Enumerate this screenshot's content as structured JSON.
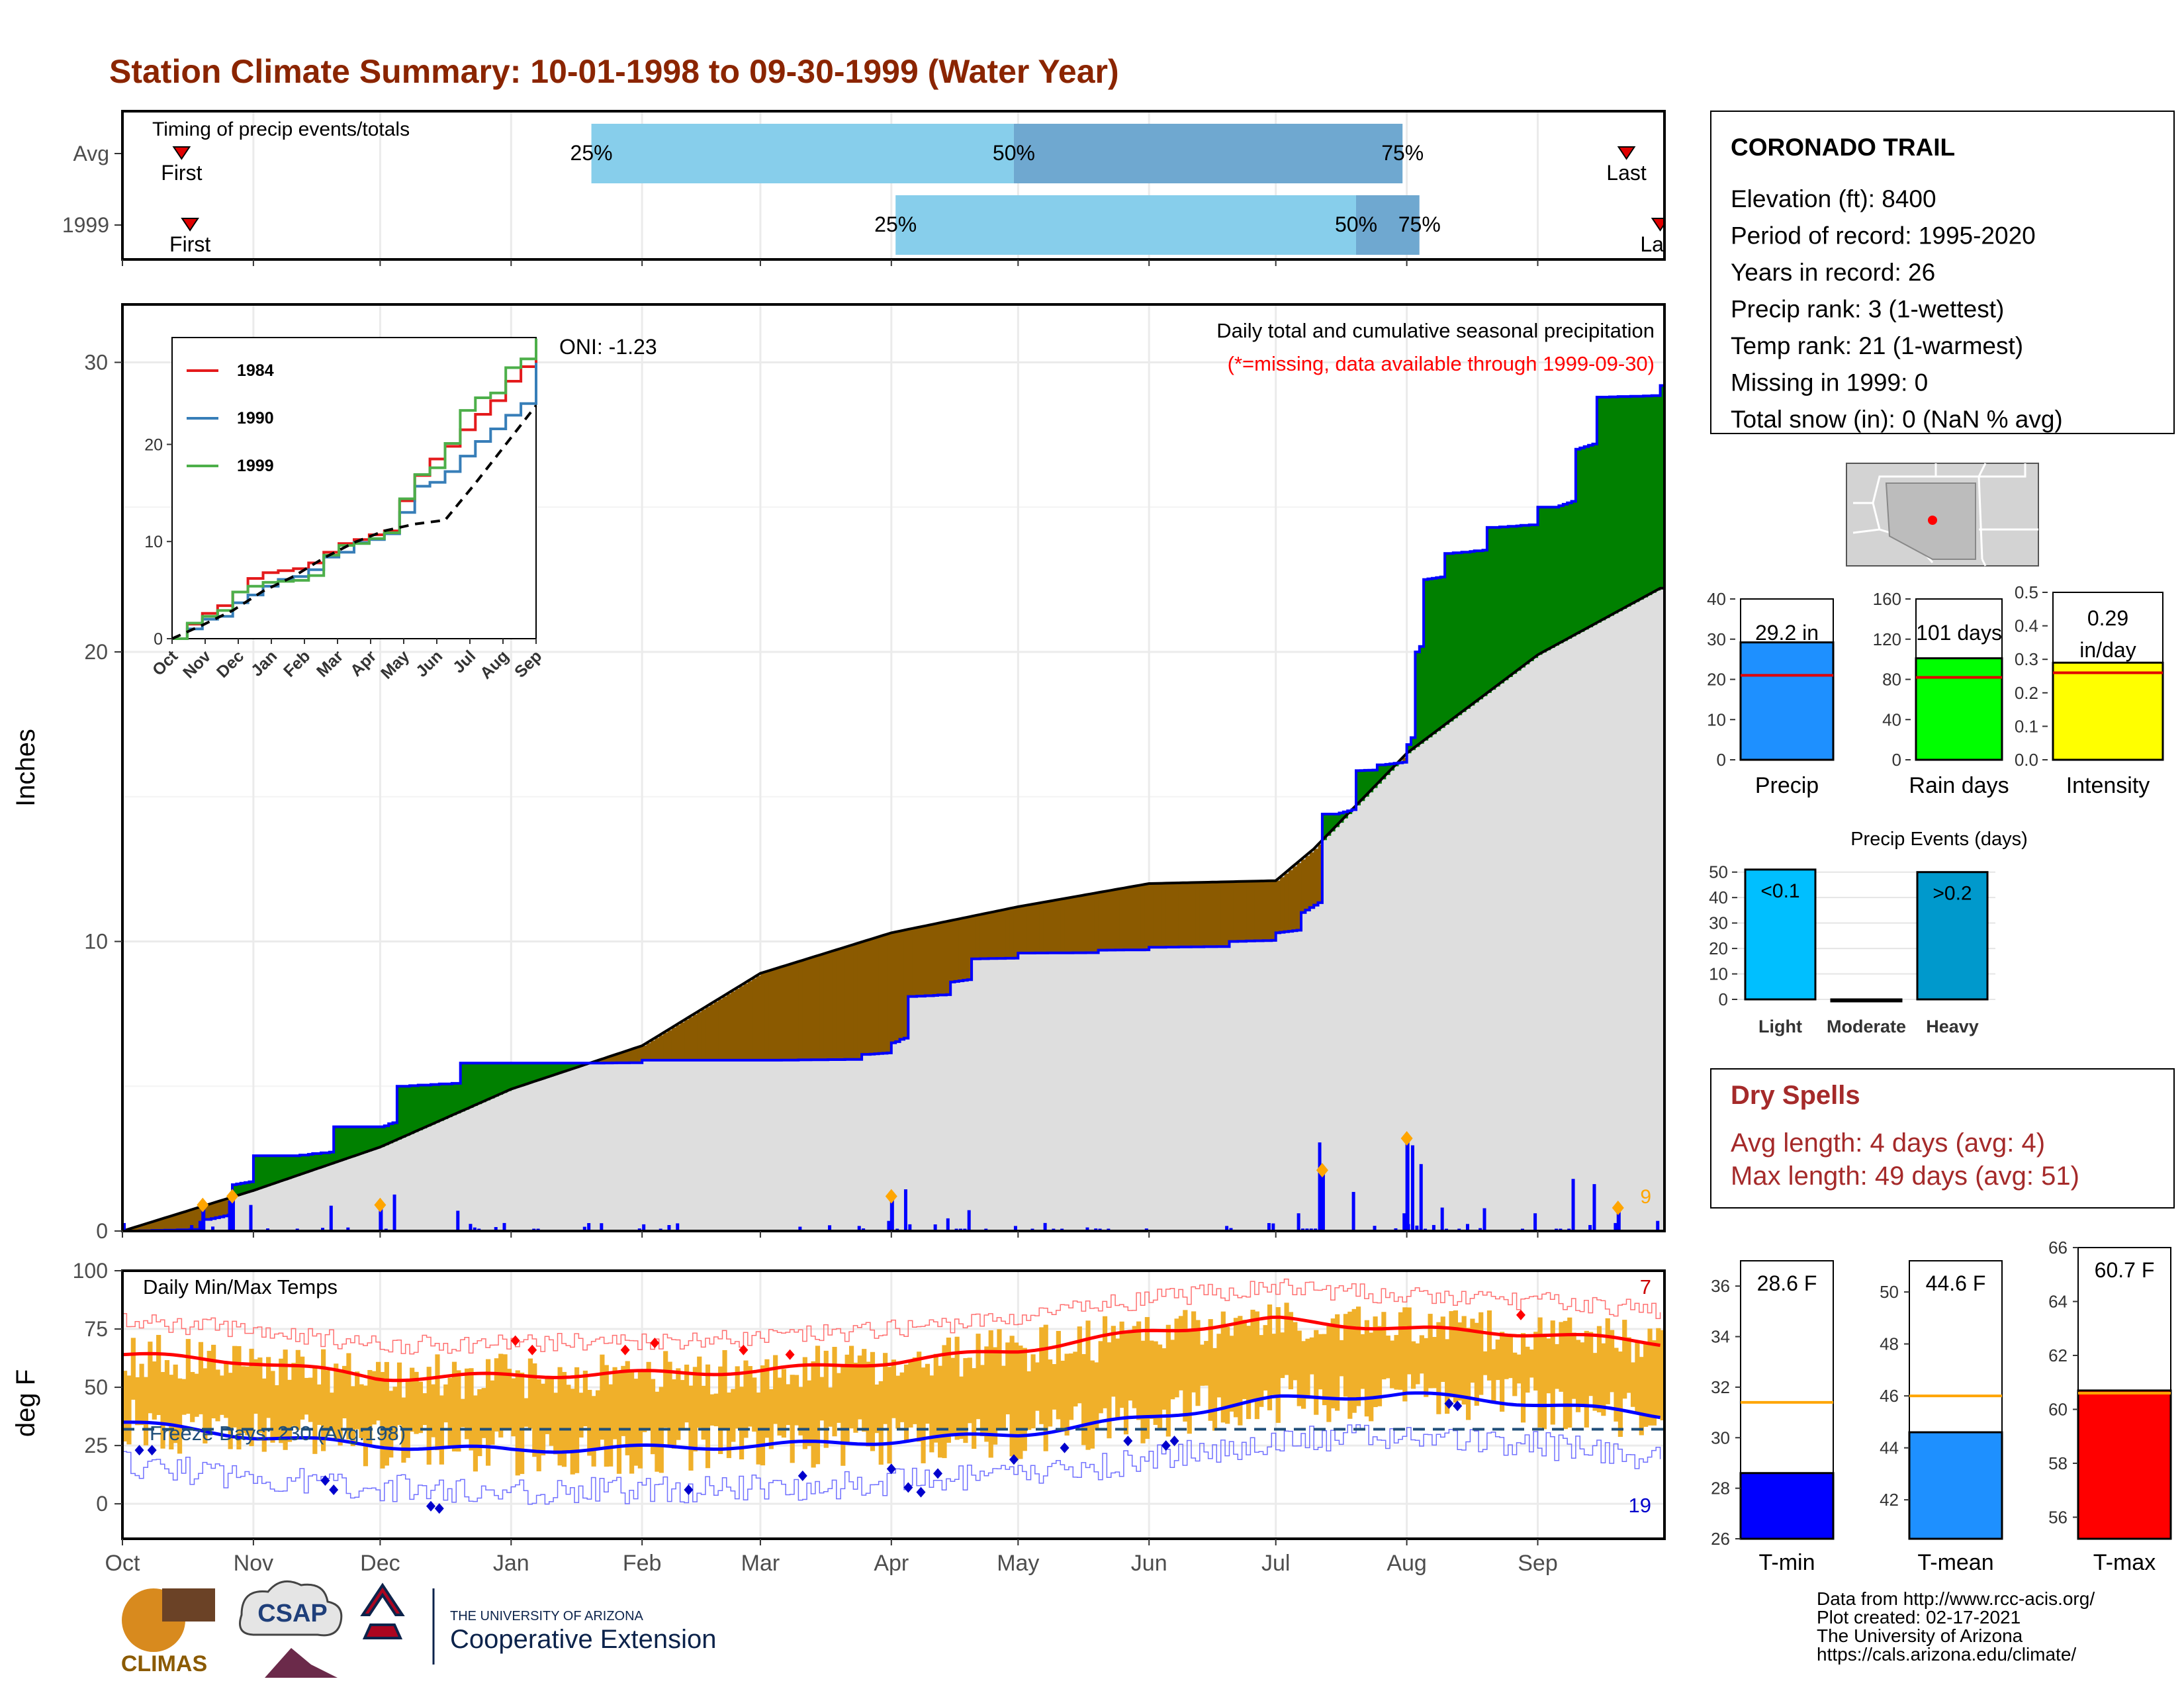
{
  "title": "Station Climate Summary: 10-01-1998 to 09-30-1999 (Water Year)",
  "colors": {
    "title": "#8b2500",
    "dry_spells": "#a52a2a",
    "above_avg": "#008000",
    "below_avg": "#8b5a00",
    "avg_fill": "#dedede",
    "obs_line": "#0000ff",
    "bar_light": "#87ceeb",
    "bar_dark": "#6fa8d0",
    "temp_bar": "#f0b02a",
    "tmax_line": "#ff0000",
    "tmin_line": "#0000ff",
    "event_marker": "#ffa500",
    "hot_marker": "#ff0000",
    "cold_marker": "#0000cc"
  },
  "timing": {
    "label": "Timing of precip events/totals",
    "rows": [
      {
        "label": "Avg",
        "first_date": "1998-10-15",
        "last_date": "1999-09-22",
        "q25_date": "1999-01-20",
        "q50_date": "1999-04-30",
        "q75_date": "1999-07-31",
        "first_text": "First",
        "last_text": "Last",
        "q25_text": "25%",
        "q50_text": "50%",
        "q75_text": "75%"
      },
      {
        "label": "1999",
        "first_date": "1998-10-17",
        "last_date": "1999-09-30",
        "q25_date": "1999-04-02",
        "q50_date": "1999-07-20",
        "q75_date": "1999-08-04",
        "first_text": "First",
        "last_text": "Last",
        "q25_text": "25%",
        "q50_text": "50%",
        "q75_text": "75%"
      }
    ]
  },
  "precip_panel": {
    "ylabel": "Inches",
    "yticks": [
      0,
      10,
      20,
      30
    ],
    "oni": "ONI: -1.23",
    "subtitle": "Daily total and cumulative seasonal precipitation",
    "missing_note": "(*=missing, data available through 1999-09-30)",
    "count_label": "9"
  },
  "inset": {
    "legend": [
      {
        "name": "1984",
        "color": "#e41a1c"
      },
      {
        "name": "1990",
        "color": "#377eb8"
      },
      {
        "name": "1999",
        "color": "#4daf4a"
      }
    ],
    "yticks": [
      0,
      10,
      20
    ],
    "xticks": [
      "Oct",
      "Nov",
      "Dec",
      "Jan",
      "Feb",
      "Mar",
      "Apr",
      "May",
      "Jun",
      "Jul",
      "Aug",
      "Sep"
    ]
  },
  "temp_panel": {
    "ylabel": "deg F",
    "yticks": [
      0,
      25,
      50,
      75,
      100
    ],
    "label": "Daily Min/Max Temps",
    "freeze_text": "Freeze Days: 230 (Avg:198)",
    "hot_count": "7",
    "cold_count": "19",
    "freeze_line": 32
  },
  "months": [
    "Oct",
    "Nov",
    "Dec",
    "Jan",
    "Feb",
    "Mar",
    "Apr",
    "May",
    "Jun",
    "Jul",
    "Aug",
    "Sep"
  ],
  "station": {
    "name": "CORONADO TRAIL",
    "lines": [
      "Elevation (ft): 8400",
      "Period of record: 1995-2020",
      "Years in record: 26",
      "Precip rank: 3 (1-wettest)",
      "Temp rank: 21 (1-warmest)",
      "Missing in 1999: 0",
      "Total snow (in): 0 (NaN % avg)"
    ]
  },
  "summary_bars": [
    {
      "label": "Precip",
      "value": 29.2,
      "value_text": "29.2 in",
      "avg": 21,
      "ymax": 40,
      "yticks": [
        0,
        10,
        20,
        30,
        40
      ],
      "color": "#1e90ff"
    },
    {
      "label": "Rain days",
      "value": 101,
      "value_text": "101 days",
      "avg": 82,
      "ymax": 160,
      "yticks": [
        0,
        40,
        80,
        120,
        160
      ],
      "color": "#00ff00"
    },
    {
      "label": "Intensity",
      "value": 0.29,
      "value_text": "0.29 in/day",
      "avg": 0.26,
      "ymax": 0.5,
      "yticks": [
        0.0,
        0.1,
        0.2,
        0.3,
        0.4,
        0.5
      ],
      "color": "#ffff00"
    }
  ],
  "precip_events": {
    "title": "Precip Events (days)",
    "yticks": [
      0,
      10,
      20,
      30,
      40,
      50
    ],
    "bars": [
      {
        "label": "Light",
        "value": 51,
        "text": "<0.1",
        "color": "#00bfff"
      },
      {
        "label": "Moderate",
        "value": 0,
        "text": "",
        "color": "#1e90ff"
      },
      {
        "label": "Heavy",
        "value": 50,
        "text": ">0.2",
        "color": "#0099cc"
      }
    ]
  },
  "dry_spells": {
    "title": "Dry Spells",
    "avg_line": "Avg length: 4 days (avg: 4)",
    "max_line": "Max length: 49 days (avg: 51)"
  },
  "temp_bars": [
    {
      "label": "T-min",
      "value": 28.6,
      "value_text": "28.6 F",
      "avg": 31.4,
      "ymin": 26,
      "ymax": 37,
      "yticks": [
        26,
        28,
        30,
        32,
        34,
        36
      ],
      "color": "#0000ff"
    },
    {
      "label": "T-mean",
      "value": 44.6,
      "value_text": "44.6 F",
      "avg": 46,
      "ymin": 40.5,
      "ymax": 51.2,
      "yticks": [
        42,
        44,
        46,
        48,
        50
      ],
      "color": "#1e90ff"
    },
    {
      "label": "T-max",
      "value": 60.7,
      "value_text": "60.7 F",
      "avg": 60.6,
      "ymin": 55.2,
      "ymax": 66,
      "yticks": [
        56,
        58,
        60,
        62,
        64,
        66
      ],
      "color": "#ff0000"
    }
  ],
  "credits": [
    "Data from http://www.rcc-acis.org/",
    "Plot created: 02-17-2021",
    "The University of Arizona",
    "https://cals.arizona.edu/climate/"
  ],
  "logos": {
    "climas": "CLIMAS",
    "csap": "CSAP",
    "ua_small": "THE UNIVERSITY OF ARIZONA",
    "ua_ext": "Cooperative Extension"
  },
  "chart_data": {
    "type": "area",
    "title": "Station Climate Summary: 10-01-1998 to 09-30-1999 (Water Year)",
    "ylabel": "Inches",
    "ylim": [
      0,
      32
    ],
    "xlim": [
      "1998-10-01",
      "1999-09-30"
    ],
    "series": [
      {
        "name": "cumulative_observed",
        "x": [
          "1998-10-01",
          "1998-10-20",
          "1998-10-27",
          "1998-11-01",
          "1998-11-10",
          "1998-11-20",
          "1998-12-01",
          "1998-12-05",
          "1998-12-20",
          "1999-01-01",
          "1999-01-20",
          "1999-02-01",
          "1999-03-01",
          "1999-03-25",
          "1999-04-01",
          "1999-04-05",
          "1999-04-15",
          "1999-04-20",
          "1999-05-01",
          "1999-05-20",
          "1999-06-01",
          "1999-06-20",
          "1999-07-01",
          "1999-07-07",
          "1999-07-12",
          "1999-07-15",
          "1999-07-20",
          "1999-07-25",
          "1999-08-01",
          "1999-08-03",
          "1999-08-05",
          "1999-08-10",
          "1999-08-20",
          "1999-09-01",
          "1999-09-05",
          "1999-09-10",
          "1999-09-15",
          "1999-09-30"
        ],
        "values": [
          0,
          0.4,
          1.6,
          2.6,
          2.6,
          3.6,
          3.6,
          5.0,
          5.8,
          5.8,
          5.8,
          5.9,
          5.9,
          6.1,
          6.5,
          8.1,
          8.6,
          9.4,
          9.6,
          9.7,
          9.8,
          10.0,
          10.3,
          11.0,
          14.4,
          14.4,
          15.9,
          16.1,
          16.8,
          20.0,
          22.5,
          23.4,
          24.3,
          25.0,
          25.0,
          27.0,
          28.8,
          29.2
        ]
      },
      {
        "name": "cumulative_average",
        "x": [
          "1998-10-01",
          "1998-11-01",
          "1998-12-01",
          "1999-01-01",
          "1999-02-01",
          "1999-03-01",
          "1999-04-01",
          "1999-05-01",
          "1999-06-01",
          "1999-07-01",
          "1999-07-10",
          "1999-07-20",
          "1999-08-01",
          "1999-09-01",
          "1999-09-30"
        ],
        "values": [
          0,
          1.4,
          2.9,
          4.9,
          6.4,
          8.9,
          10.3,
          11.2,
          12.0,
          12.1,
          13.2,
          14.7,
          16.5,
          19.9,
          22.2
        ]
      }
    ],
    "daily_precip_events": [
      {
        "x": "1998-10-20",
        "y": 0.9
      },
      {
        "x": "1998-10-27",
        "y": 1.2
      },
      {
        "x": "1998-12-01",
        "y": 0.9
      },
      {
        "x": "1999-04-01",
        "y": 1.2
      },
      {
        "x": "1999-07-12",
        "y": 2.1
      },
      {
        "x": "1999-08-01",
        "y": 3.2
      },
      {
        "x": "1999-09-20",
        "y": 0.8
      }
    ],
    "temperature": {
      "ylim": [
        -15,
        100
      ],
      "series": [
        {
          "name": "tmax_smoothed",
          "x": [
            "1998-10-01",
            "1998-11-01",
            "1998-12-01",
            "1999-01-01",
            "1999-02-01",
            "1999-03-01",
            "1999-04-01",
            "1999-05-01",
            "1999-06-01",
            "1999-07-01",
            "1999-08-01",
            "1999-09-01",
            "1999-09-30"
          ],
          "values": [
            64,
            61,
            54,
            55,
            56,
            57,
            61,
            66,
            74,
            79,
            75,
            73,
            69
          ]
        },
        {
          "name": "tmin_smoothed",
          "x": [
            "1998-10-01",
            "1998-11-01",
            "1998-12-01",
            "1999-01-01",
            "1999-02-01",
            "1999-03-01",
            "1999-04-01",
            "1999-05-01",
            "1999-06-01",
            "1999-07-01",
            "1999-08-01",
            "1999-09-01",
            "1999-09-30"
          ],
          "values": [
            35,
            29,
            25,
            23,
            24,
            25,
            27,
            30,
            37,
            45,
            47,
            43,
            38
          ]
        }
      ]
    }
  }
}
